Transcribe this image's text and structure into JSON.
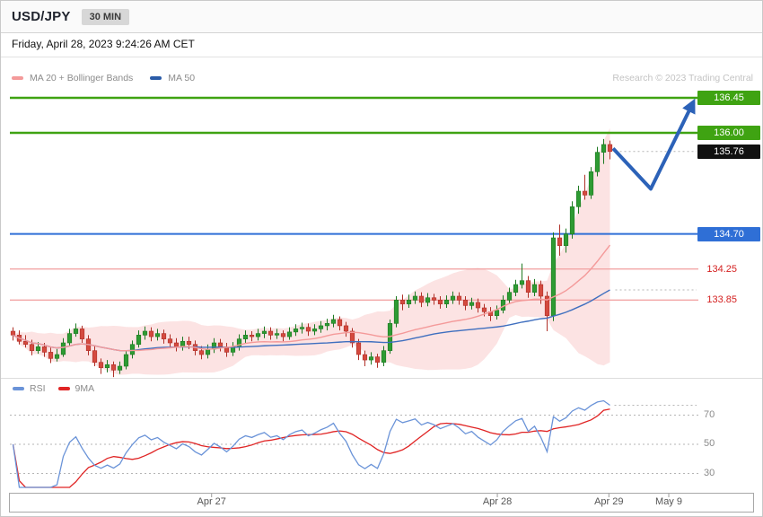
{
  "header": {
    "title": "USD/JPY",
    "timeframe_badge": "30 MIN"
  },
  "datetime_line": "Friday, April 28, 2023 9:24:26 AM CET",
  "legend_main": {
    "ma20_label": "MA 20 + Bollinger Bands",
    "ma50_label": "MA 50"
  },
  "watermark": "Research © 2023 Trading Central",
  "legend_rsi": {
    "rsi_label": "RSI",
    "ma9_label": "9MA"
  },
  "colors": {
    "up_candle": "#2e9b33",
    "up_candle_border": "#1e7a22",
    "down_candle": "#d44a3f",
    "down_candle_border": "#b03028",
    "ma20": "#f49a9a",
    "ma50": "#3f6fbf",
    "bollinger_fill": "#f8c0c0",
    "resistance_line": "#3fa312",
    "pivot_line": "#2f6fd6",
    "support_line": "#f2a6a6",
    "support_text": "#d42020",
    "last_price_bg": "#111111",
    "arrow": "#2c62b8",
    "rsi_line": "#6a93d8",
    "rsi_ma_line": "#e02424",
    "grid_dotted": "#b5b5b5",
    "axis_text": "#555555"
  },
  "chart_data": [
    {
      "type": "candlestick",
      "title": "USD/JPY 30 MIN with MA 20 + Bollinger Bands and MA 50",
      "interval": "30 MIN",
      "ylim": [
        132.85,
        136.6
      ],
      "overlays": [
        "MA 20",
        "Bollinger Bands",
        "MA 50"
      ],
      "candles": [
        [
          133.45,
          133.5,
          133.33,
          133.4
        ],
        [
          133.4,
          133.46,
          133.28,
          133.32
        ],
        [
          133.32,
          133.4,
          133.24,
          133.28
        ],
        [
          133.28,
          133.34,
          133.14,
          133.2
        ],
        [
          133.2,
          133.31,
          133.16,
          133.25
        ],
        [
          133.25,
          133.3,
          133.12,
          133.18
        ],
        [
          133.18,
          133.24,
          133.04,
          133.1
        ],
        [
          133.1,
          133.22,
          133.06,
          133.15
        ],
        [
          133.15,
          133.36,
          133.12,
          133.3
        ],
        [
          133.3,
          133.48,
          133.26,
          133.42
        ],
        [
          133.42,
          133.55,
          133.38,
          133.48
        ],
        [
          133.48,
          133.52,
          133.3,
          133.35
        ],
        [
          133.35,
          133.4,
          133.14,
          133.2
        ],
        [
          133.2,
          133.26,
          133.0,
          133.05
        ],
        [
          133.05,
          133.1,
          132.9,
          132.98
        ],
        [
          132.98,
          133.08,
          132.92,
          133.02
        ],
        [
          133.02,
          133.06,
          132.86,
          132.95
        ],
        [
          132.95,
          133.06,
          132.9,
          133.0
        ],
        [
          133.0,
          133.2,
          132.96,
          133.15
        ],
        [
          133.15,
          133.33,
          133.1,
          133.28
        ],
        [
          133.28,
          133.46,
          133.24,
          133.4
        ],
        [
          133.4,
          133.51,
          133.34,
          133.45
        ],
        [
          133.45,
          133.5,
          133.32,
          133.38
        ],
        [
          133.38,
          133.48,
          133.33,
          133.42
        ],
        [
          133.42,
          133.47,
          133.29,
          133.35
        ],
        [
          133.35,
          133.41,
          133.24,
          133.3
        ],
        [
          133.3,
          133.36,
          133.19,
          133.25
        ],
        [
          133.25,
          133.38,
          133.2,
          133.32
        ],
        [
          133.32,
          133.38,
          133.22,
          133.28
        ],
        [
          133.28,
          133.33,
          133.14,
          133.2
        ],
        [
          133.2,
          133.26,
          133.09,
          133.15
        ],
        [
          133.15,
          133.28,
          133.1,
          133.22
        ],
        [
          133.22,
          133.36,
          133.17,
          133.3
        ],
        [
          133.3,
          133.35,
          133.19,
          133.25
        ],
        [
          133.25,
          133.3,
          133.12,
          133.18
        ],
        [
          133.18,
          133.31,
          133.13,
          133.25
        ],
        [
          133.25,
          133.41,
          133.2,
          133.35
        ],
        [
          133.35,
          133.46,
          133.3,
          133.4
        ],
        [
          133.4,
          133.45,
          133.32,
          133.38
        ],
        [
          133.38,
          133.48,
          133.33,
          133.42
        ],
        [
          133.42,
          133.51,
          133.36,
          133.45
        ],
        [
          133.45,
          133.5,
          133.34,
          133.4
        ],
        [
          133.4,
          133.48,
          133.35,
          133.42
        ],
        [
          133.42,
          133.46,
          133.32,
          133.38
        ],
        [
          133.38,
          133.5,
          133.34,
          133.44
        ],
        [
          133.44,
          133.54,
          133.39,
          133.48
        ],
        [
          133.48,
          133.56,
          133.42,
          133.5
        ],
        [
          133.5,
          133.55,
          133.39,
          133.45
        ],
        [
          133.45,
          133.54,
          133.4,
          133.48
        ],
        [
          133.48,
          133.58,
          133.43,
          133.52
        ],
        [
          133.52,
          133.61,
          133.46,
          133.55
        ],
        [
          133.55,
          133.66,
          133.5,
          133.6
        ],
        [
          133.6,
          133.64,
          133.46,
          133.52
        ],
        [
          133.52,
          133.57,
          133.38,
          133.45
        ],
        [
          133.45,
          133.49,
          133.24,
          133.3
        ],
        [
          133.3,
          133.35,
          133.08,
          133.15
        ],
        [
          133.15,
          133.2,
          133.0,
          133.08
        ],
        [
          133.08,
          133.18,
          133.02,
          133.12
        ],
        [
          133.12,
          133.16,
          132.98,
          133.05
        ],
        [
          133.05,
          133.26,
          133.0,
          133.2
        ],
        [
          133.2,
          133.6,
          133.16,
          133.55
        ],
        [
          133.55,
          133.9,
          133.5,
          133.85
        ],
        [
          133.85,
          133.92,
          133.72,
          133.8
        ],
        [
          133.8,
          133.92,
          133.75,
          133.85
        ],
        [
          133.85,
          133.96,
          133.8,
          133.9
        ],
        [
          133.9,
          133.95,
          133.76,
          133.82
        ],
        [
          133.82,
          133.94,
          133.77,
          133.88
        ],
        [
          133.88,
          133.93,
          133.79,
          133.85
        ],
        [
          133.85,
          133.9,
          133.74,
          133.8
        ],
        [
          133.8,
          133.91,
          133.75,
          133.85
        ],
        [
          133.85,
          133.96,
          133.8,
          133.9
        ],
        [
          133.9,
          133.95,
          133.79,
          133.85
        ],
        [
          133.85,
          133.9,
          133.72,
          133.78
        ],
        [
          133.78,
          133.88,
          133.73,
          133.82
        ],
        [
          133.82,
          133.87,
          133.69,
          133.75
        ],
        [
          133.75,
          133.8,
          133.64,
          133.7
        ],
        [
          133.7,
          133.76,
          133.58,
          133.65
        ],
        [
          133.65,
          133.78,
          133.6,
          133.72
        ],
        [
          133.72,
          133.91,
          133.68,
          133.85
        ],
        [
          133.85,
          134.01,
          133.8,
          133.95
        ],
        [
          133.95,
          134.11,
          133.9,
          134.05
        ],
        [
          134.05,
          134.32,
          134.0,
          134.1
        ],
        [
          134.1,
          134.16,
          133.88,
          133.95
        ],
        [
          133.95,
          134.12,
          133.9,
          134.05
        ],
        [
          134.05,
          134.1,
          133.8,
          133.9
        ],
        [
          133.9,
          133.96,
          133.45,
          133.65
        ],
        [
          133.65,
          134.72,
          133.58,
          134.65
        ],
        [
          134.65,
          134.82,
          134.42,
          134.55
        ],
        [
          134.55,
          134.77,
          134.46,
          134.7
        ],
        [
          134.7,
          135.12,
          134.64,
          135.05
        ],
        [
          135.05,
          135.32,
          134.96,
          135.25
        ],
        [
          135.25,
          135.46,
          135.14,
          135.2
        ],
        [
          135.2,
          135.56,
          135.15,
          135.5
        ],
        [
          135.5,
          135.82,
          135.44,
          135.75
        ],
        [
          135.75,
          135.92,
          135.6,
          135.85
        ],
        [
          135.85,
          135.9,
          135.66,
          135.76
        ]
      ],
      "levels": [
        {
          "value": 136.45,
          "label": "136.45",
          "kind": "resistance"
        },
        {
          "value": 136.0,
          "label": "136.00",
          "kind": "resistance"
        },
        {
          "value": 135.76,
          "label": "135.76",
          "kind": "last-price"
        },
        {
          "value": 134.7,
          "label": "134.70",
          "kind": "pivot"
        },
        {
          "value": 134.25,
          "label": "134.25",
          "kind": "support"
        },
        {
          "value": 133.85,
          "label": "133.85",
          "kind": "support"
        }
      ],
      "forecast_arrow": {
        "points": [
          [
            95.5,
            135.8
          ],
          [
            101.5,
            135.28
          ],
          [
            108.3,
            136.4
          ]
        ],
        "direction": "up-to-136.45"
      },
      "x_ticks": [
        {
          "label": "Apr 27",
          "pos": 0.293
        },
        {
          "label": "Apr 28",
          "pos": 0.708
        },
        {
          "label": "Apr 29",
          "pos": 0.87
        },
        {
          "label": "May 9",
          "pos": 0.957
        }
      ]
    },
    {
      "type": "line",
      "title": "RSI with 9MA",
      "yticks": [
        70,
        50,
        30
      ],
      "ylim": [
        25,
        92
      ],
      "series": [
        {
          "name": "RSI"
        },
        {
          "name": "9MA"
        }
      ]
    }
  ]
}
